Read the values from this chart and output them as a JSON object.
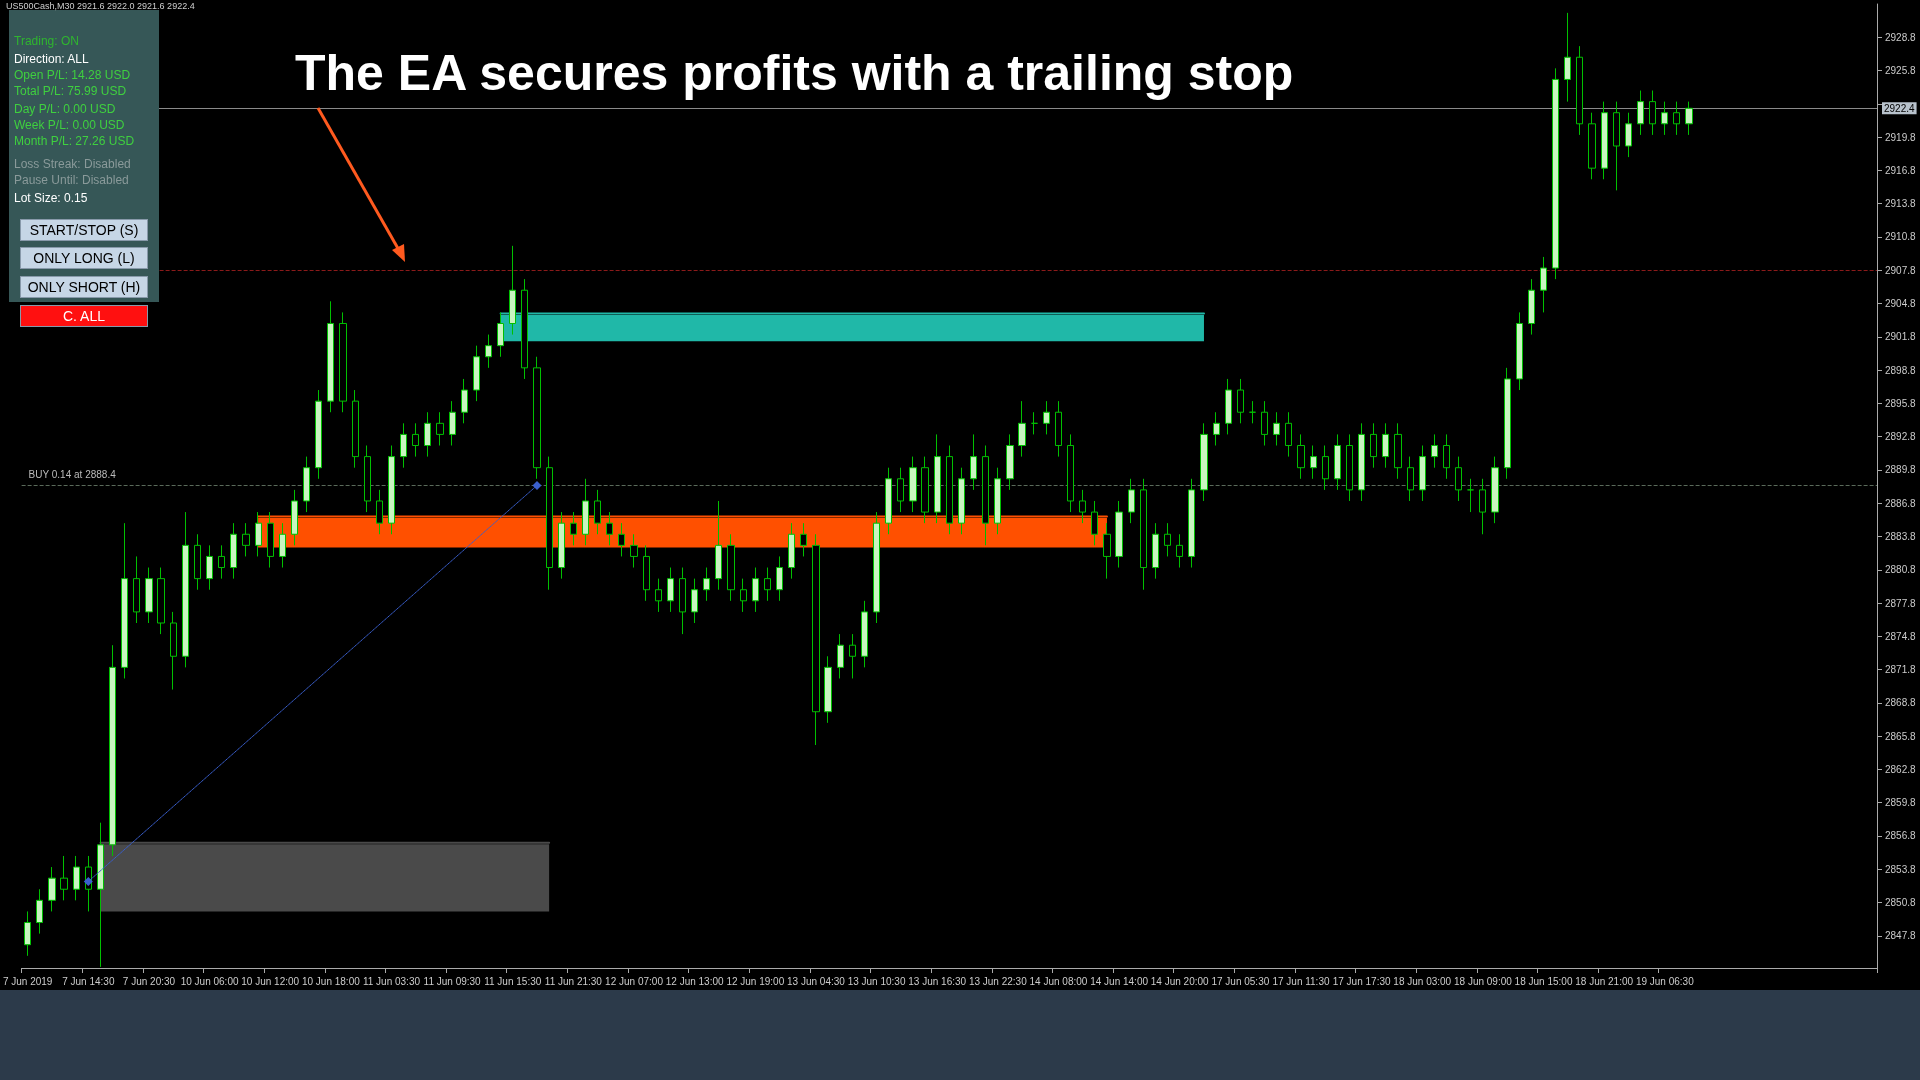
{
  "chart_data": {
    "type": "candlestick",
    "title": "The EA secures profits with a trailing stop",
    "categories": [
      "7 Jun 2019",
      null,
      null,
      null,
      null,
      "7 Jun 14:30",
      null,
      null,
      null,
      null,
      "7 Jun 20:30",
      null,
      null,
      null,
      null,
      "10 Jun 06:00",
      null,
      null,
      null,
      null,
      "10 Jun 12:00",
      null,
      null,
      null,
      null,
      "10 Jun 18:00",
      null,
      null,
      null,
      null,
      "11 Jun 03:30",
      null,
      null,
      null,
      null,
      "11 Jun 09:30",
      null,
      null,
      null,
      null,
      "11 Jun 15:30",
      null,
      null,
      null,
      null,
      "11 Jun 21:30",
      null,
      null,
      null,
      null,
      "12 Jun 07:00",
      null,
      null,
      null,
      null,
      "12 Jun 13:00",
      null,
      null,
      null,
      null,
      "12 Jun 19:00",
      null,
      null,
      null,
      null,
      "13 Jun 04:30",
      null,
      null,
      null,
      null,
      "13 Jun 10:30",
      null,
      null,
      null,
      null,
      "13 Jun 16:30",
      null,
      null,
      null,
      null,
      "13 Jun 22:30",
      null,
      null,
      null,
      null,
      "14 Jun 08:00",
      null,
      null,
      null,
      null,
      "14 Jun 14:00",
      null,
      null,
      null,
      null,
      "14 Jun 20:00",
      null,
      null,
      null,
      null,
      "17 Jun 05:30",
      null,
      null,
      null,
      null,
      "17 Jun 11:30",
      null,
      null,
      null,
      null,
      "17 Jun 17:30",
      null,
      null,
      null,
      null,
      "18 Jun 03:00",
      null,
      null,
      null,
      null,
      "18 Jun 09:00",
      null,
      null,
      null,
      null,
      "18 Jun 15:00",
      null,
      null,
      null,
      null,
      "18 Jun 21:00",
      null,
      null,
      null,
      null,
      "19 Jun 06:30",
      null,
      null,
      null,
      null,
      null,
      null,
      null,
      null,
      null,
      null,
      null,
      null,
      null,
      null,
      null,
      null,
      null
    ],
    "color": "#00c000",
    "ohlc": [
      [
        2847,
        2850,
        2846,
        2849
      ],
      [
        2849,
        2852,
        2848,
        2851
      ],
      [
        2851,
        2854,
        2850,
        2853
      ],
      [
        2853,
        2855,
        2851,
        2852
      ],
      [
        2852,
        2855,
        2851,
        2854
      ],
      [
        2854,
        2855,
        2850,
        2852
      ],
      [
        2852,
        2858,
        2845,
        2856
      ],
      [
        2856,
        2874,
        2855,
        2872
      ],
      [
        2872,
        2885,
        2871,
        2880
      ],
      [
        2880,
        2882,
        2876,
        2877
      ],
      [
        2877,
        2881,
        2876,
        2880
      ],
      [
        2880,
        2881,
        2875,
        2876
      ],
      [
        2876,
        2877,
        2870,
        2873
      ],
      [
        2873,
        2886,
        2872,
        2883
      ],
      [
        2883,
        2884,
        2879,
        2880
      ],
      [
        2880,
        2883,
        2879,
        2882
      ],
      [
        2882,
        2883,
        2880,
        2881
      ],
      [
        2881,
        2885,
        2880,
        2884
      ],
      [
        2884,
        2885,
        2882,
        2883
      ],
      [
        2883,
        2886,
        2882,
        2885
      ],
      [
        2885,
        2886,
        2881,
        2882
      ],
      [
        2882,
        2885,
        2881,
        2884
      ],
      [
        2884,
        2888,
        2883,
        2887
      ],
      [
        2887,
        2891,
        2886,
        2890
      ],
      [
        2890,
        2897,
        2889,
        2896
      ],
      [
        2896,
        2905,
        2895,
        2903
      ],
      [
        2903,
        2904,
        2895,
        2896
      ],
      [
        2896,
        2897,
        2890,
        2891
      ],
      [
        2891,
        2892,
        2886,
        2887
      ],
      [
        2887,
        2888,
        2884,
        2885
      ],
      [
        2885,
        2892,
        2884,
        2891
      ],
      [
        2891,
        2894,
        2890,
        2893
      ],
      [
        2893,
        2894,
        2891,
        2892
      ],
      [
        2892,
        2895,
        2891,
        2894
      ],
      [
        2894,
        2895,
        2892,
        2893
      ],
      [
        2893,
        2896,
        2892,
        2895
      ],
      [
        2895,
        2898,
        2894,
        2897
      ],
      [
        2897,
        2901,
        2896,
        2900
      ],
      [
        2900,
        2902,
        2899,
        2901
      ],
      [
        2901,
        2904,
        2900,
        2903
      ],
      [
        2903,
        2910,
        2902,
        2906
      ],
      [
        2906,
        2907,
        2898,
        2899
      ],
      [
        2899,
        2900,
        2889,
        2890
      ],
      [
        2890,
        2891,
        2879,
        2881
      ],
      [
        2881,
        2886,
        2880,
        2885
      ],
      [
        2885,
        2886,
        2883,
        2884
      ],
      [
        2884,
        2889,
        2883,
        2887
      ],
      [
        2887,
        2888,
        2884,
        2885
      ],
      [
        2885,
        2886,
        2883,
        2884
      ],
      [
        2884,
        2885,
        2882,
        2883
      ],
      [
        2883,
        2884,
        2881,
        2882
      ],
      [
        2882,
        2883,
        2878,
        2879
      ],
      [
        2879,
        2880,
        2877,
        2878
      ],
      [
        2878,
        2881,
        2877,
        2880
      ],
      [
        2880,
        2881,
        2875,
        2877
      ],
      [
        2877,
        2880,
        2876,
        2879
      ],
      [
        2879,
        2881,
        2878,
        2880
      ],
      [
        2880,
        2887,
        2879,
        2883
      ],
      [
        2883,
        2884,
        2878,
        2879
      ],
      [
        2879,
        2880,
        2877,
        2878
      ],
      [
        2878,
        2881,
        2877,
        2880
      ],
      [
        2880,
        2881,
        2878,
        2879
      ],
      [
        2879,
        2882,
        2878,
        2881
      ],
      [
        2881,
        2885,
        2880,
        2884
      ],
      [
        2884,
        2885,
        2882,
        2883
      ],
      [
        2883,
        2884,
        2865,
        2868
      ],
      [
        2868,
        2873,
        2867,
        2872
      ],
      [
        2872,
        2875,
        2871,
        2874
      ],
      [
        2874,
        2875,
        2871,
        2873
      ],
      [
        2873,
        2878,
        2872,
        2877
      ],
      [
        2877,
        2886,
        2876,
        2885
      ],
      [
        2885,
        2890,
        2884,
        2889
      ],
      [
        2889,
        2890,
        2886,
        2887
      ],
      [
        2887,
        2891,
        2886,
        2890
      ],
      [
        2890,
        2891,
        2885,
        2886
      ],
      [
        2886,
        2893,
        2885,
        2891
      ],
      [
        2891,
        2892,
        2884,
        2885
      ],
      [
        2885,
        2890,
        2884,
        2889
      ],
      [
        2889,
        2893,
        2888,
        2891
      ],
      [
        2891,
        2892,
        2883,
        2885
      ],
      [
        2885,
        2890,
        2884,
        2889
      ],
      [
        2889,
        2893,
        2888,
        2892
      ],
      [
        2892,
        2896,
        2891,
        2894
      ],
      [
        2894,
        2895,
        2893,
        2894
      ],
      [
        2894,
        2896,
        2893,
        2895
      ],
      [
        2895,
        2896,
        2891,
        2892
      ],
      [
        2892,
        2893,
        2886,
        2887
      ],
      [
        2887,
        2888,
        2885,
        2886
      ],
      [
        2886,
        2887,
        2883,
        2884
      ],
      [
        2884,
        2885,
        2880,
        2882
      ],
      [
        2882,
        2887,
        2881,
        2886
      ],
      [
        2886,
        2889,
        2885,
        2888
      ],
      [
        2888,
        2889,
        2879,
        2881
      ],
      [
        2881,
        2885,
        2880,
        2884
      ],
      [
        2884,
        2885,
        2882,
        2883
      ],
      [
        2883,
        2884,
        2881,
        2882
      ],
      [
        2882,
        2889,
        2881,
        2888
      ],
      [
        2888,
        2894,
        2887,
        2893
      ],
      [
        2893,
        2895,
        2892,
        2894
      ],
      [
        2894,
        2898,
        2893,
        2897
      ],
      [
        2897,
        2898,
        2894,
        2895
      ],
      [
        2895,
        2896,
        2894,
        2895
      ],
      [
        2895,
        2896,
        2892,
        2893
      ],
      [
        2893,
        2895,
        2892,
        2894
      ],
      [
        2894,
        2895,
        2891,
        2892
      ],
      [
        2892,
        2893,
        2889,
        2890
      ],
      [
        2890,
        2892,
        2889,
        2891
      ],
      [
        2891,
        2892,
        2888,
        2889
      ],
      [
        2889,
        2893,
        2888,
        2892
      ],
      [
        2892,
        2893,
        2887,
        2888
      ],
      [
        2888,
        2894,
        2887,
        2893
      ],
      [
        2893,
        2894,
        2890,
        2891
      ],
      [
        2891,
        2894,
        2890,
        2893
      ],
      [
        2893,
        2894,
        2889,
        2890
      ],
      [
        2890,
        2891,
        2887,
        2888
      ],
      [
        2888,
        2892,
        2887,
        2891
      ],
      [
        2891,
        2893,
        2890,
        2892
      ],
      [
        2892,
        2893,
        2889,
        2890
      ],
      [
        2890,
        2891,
        2887,
        2888
      ],
      [
        2888,
        2889,
        2886,
        2888
      ],
      [
        2888,
        2889,
        2884,
        2886
      ],
      [
        2886,
        2891,
        2885,
        2890
      ],
      [
        2890,
        2899,
        2889,
        2898
      ],
      [
        2898,
        2904,
        2897,
        2903
      ],
      [
        2903,
        2907,
        2902,
        2906
      ],
      [
        2906,
        2909,
        2904,
        2908
      ],
      [
        2908,
        2926,
        2907,
        2925
      ],
      [
        2925,
        2931,
        2923,
        2927
      ],
      [
        2927,
        2928,
        2920,
        2921
      ],
      [
        2921,
        2922,
        2916,
        2917
      ],
      [
        2917,
        2923,
        2916,
        2922
      ],
      [
        2922,
        2923,
        2915,
        2919
      ],
      [
        2919,
        2922,
        2918,
        2921
      ],
      [
        2921,
        2924,
        2920,
        2923
      ],
      [
        2923,
        2924,
        2920,
        2921
      ],
      [
        2921,
        2923,
        2920,
        2922
      ],
      [
        2922,
        2923,
        2920,
        2921
      ],
      [
        2921,
        2923,
        2920,
        2922.4
      ],
      null,
      null,
      null,
      null,
      null,
      null,
      null,
      null,
      null,
      null,
      null,
      null,
      null,
      null,
      null
    ],
    "series": [
      {
        "type": "line",
        "color": "#20b8a8",
        "values": [
          null,
          null,
          null,
          null,
          null,
          null,
          null,
          null,
          null,
          null,
          null,
          null,
          null,
          null,
          null,
          null,
          null,
          null,
          null,
          null,
          null,
          null,
          null,
          null,
          null,
          null,
          null,
          null,
          null,
          null,
          null,
          null,
          null,
          null,
          null,
          null,
          null,
          null,
          null,
          2903.9,
          2903.9,
          2903.9,
          2903.9,
          2903.9,
          2903.9,
          2903.9,
          2903.9,
          2903.9,
          2903.9,
          2903.9,
          2903.9,
          2903.9,
          2903.9,
          2903.9,
          2903.9,
          2903.9,
          2903.9,
          2903.9,
          2903.9,
          2903.9,
          2903.9,
          2903.9,
          2903.9,
          2903.9,
          2903.9,
          2903.9,
          2903.9,
          2903.9,
          2903.9,
          2903.9,
          2903.9,
          2903.9,
          2903.9,
          2903.9,
          2903.9,
          2903.9,
          2903.9,
          2903.9,
          2903.9,
          2903.9,
          2903.9,
          2903.9,
          2903.9,
          2903.9,
          2903.9,
          2903.9,
          2903.9,
          2903.9,
          2903.9,
          2903.9,
          2903.9,
          2903.9,
          2903.9,
          2903.9,
          2903.9,
          2903.9,
          2903.9,
          2903.9,
          null,
          null,
          null,
          null,
          null,
          null,
          null,
          null,
          null,
          null,
          null,
          null,
          null,
          null,
          null,
          null,
          null,
          null,
          null,
          null,
          null,
          null,
          null,
          null,
          null,
          null,
          null,
          null,
          null,
          null,
          null,
          null,
          null,
          null,
          null,
          null,
          null,
          null,
          null,
          null,
          null,
          null,
          null,
          null,
          null,
          null,
          null,
          null,
          null,
          null,
          null,
          null,
          null,
          null,
          null
        ],
        "upper": [
          null,
          null,
          null,
          null,
          null,
          null,
          null,
          null,
          null,
          null,
          null,
          null,
          null,
          null,
          null,
          null,
          null,
          null,
          null,
          null,
          null,
          null,
          null,
          null,
          null,
          null,
          null,
          null,
          null,
          null,
          null,
          null,
          null,
          null,
          null,
          null,
          null,
          null,
          null,
          2903.9,
          2903.9,
          2903.9,
          2903.9,
          2903.9,
          2903.9,
          2903.9,
          2903.9,
          2903.9,
          2903.9,
          2903.9,
          2903.9,
          2903.9,
          2903.9,
          2903.9,
          2903.9,
          2903.9,
          2903.9,
          2903.9,
          2903.9,
          2903.9,
          2903.9,
          2903.9,
          2903.9,
          2903.9,
          2903.9,
          2903.9,
          2903.9,
          2903.9,
          2903.9,
          2903.9,
          2903.9,
          2903.9,
          2903.9,
          2903.9,
          2903.9,
          2903.9,
          2903.9,
          2903.9,
          2903.9,
          2903.9,
          2903.9,
          2903.9,
          2903.9,
          2903.9,
          2903.9,
          2903.9,
          2903.9,
          2903.9,
          2903.9,
          2903.9,
          2903.9,
          2903.9,
          2903.9,
          2903.9,
          2903.9,
          2903.9,
          2903.9,
          2903.9,
          null,
          null,
          null,
          null,
          null,
          null,
          null,
          null,
          null,
          null,
          null,
          null,
          null,
          null,
          null,
          null,
          null,
          null,
          null,
          null,
          null,
          null,
          null,
          null,
          null,
          null,
          null,
          null,
          null,
          null,
          null,
          null,
          null,
          null,
          null,
          null,
          null,
          null,
          null,
          null,
          null,
          null,
          null,
          null,
          null,
          null,
          null,
          null,
          null,
          null,
          null,
          null,
          null,
          null,
          null
        ],
        "lower": [
          null,
          null,
          null,
          null,
          null,
          null,
          null,
          null,
          null,
          null,
          null,
          null,
          null,
          null,
          null,
          null,
          null,
          null,
          null,
          null,
          null,
          null,
          null,
          null,
          null,
          null,
          null,
          null,
          null,
          null,
          null,
          null,
          null,
          null,
          null,
          null,
          null,
          null,
          null,
          2901.4,
          2901.4,
          2901.4,
          2901.4,
          2901.4,
          2901.4,
          2901.4,
          2901.4,
          2901.4,
          2901.4,
          2901.4,
          2901.4,
          2901.4,
          2901.4,
          2901.4,
          2901.4,
          2901.4,
          2901.4,
          2901.4,
          2901.4,
          2901.4,
          2901.4,
          2901.4,
          2901.4,
          2901.4,
          2901.4,
          2901.4,
          2901.4,
          2901.4,
          2901.4,
          2901.4,
          2901.4,
          2901.4,
          2901.4,
          2901.4,
          2901.4,
          2901.4,
          2901.4,
          2901.4,
          2901.4,
          2901.4,
          2901.4,
          2901.4,
          2901.4,
          2901.4,
          2901.4,
          2901.4,
          2901.4,
          2901.4,
          2901.4,
          2901.4,
          2901.4,
          2901.4,
          2901.4,
          2901.4,
          2901.4,
          2901.4,
          2901.4,
          2901.4,
          null,
          null,
          null,
          null,
          null,
          null,
          null,
          null,
          null,
          null,
          null,
          null,
          null,
          null,
          null,
          null,
          null,
          null,
          null,
          null,
          null,
          null,
          null,
          null,
          null,
          null,
          null,
          null,
          null,
          null,
          null,
          null,
          null,
          null,
          null,
          null,
          null,
          null,
          null,
          null,
          null,
          null,
          null,
          null,
          null,
          null,
          null,
          null,
          null,
          null,
          null,
          null,
          null,
          null,
          null
        ]
      },
      {
        "type": "line",
        "color": "#ff5000",
        "values": [
          null,
          null,
          null,
          null,
          null,
          null,
          null,
          null,
          null,
          null,
          null,
          null,
          null,
          null,
          null,
          null,
          null,
          null,
          null,
          2885.6,
          2885.6,
          2885.6,
          2885.6,
          2885.6,
          2885.6,
          2885.6,
          2885.6,
          2885.6,
          2885.6,
          2885.6,
          2885.6,
          2885.6,
          2885.6,
          2885.6,
          2885.6,
          2885.6,
          2885.6,
          2885.6,
          2885.6,
          2885.6,
          2885.6,
          2885.6,
          2885.6,
          2885.6,
          2885.6,
          2885.6,
          2885.6,
          2885.6,
          2885.6,
          2885.6,
          2885.6,
          2885.6,
          2885.6,
          2885.6,
          2885.6,
          2885.6,
          2885.6,
          2885.6,
          2885.6,
          2885.6,
          2885.6,
          2885.6,
          2885.6,
          2885.6,
          2885.6,
          2885.6,
          2885.6,
          2885.6,
          2885.6,
          2885.6,
          2885.6,
          2885.6,
          2885.6,
          2885.6,
          2885.6,
          2885.6,
          2885.6,
          2885.6,
          2885.6,
          2885.6,
          2885.6,
          2885.6,
          2885.6,
          2885.6,
          2885.6,
          2885.6,
          2885.6,
          2885.6,
          2885.6,
          2885.6,
          null,
          null,
          null,
          null,
          null,
          null,
          null,
          null,
          null,
          null,
          null,
          null,
          null,
          null,
          null,
          null,
          null,
          null,
          null,
          null,
          null,
          null,
          null,
          null,
          null,
          null,
          null,
          null,
          null,
          null,
          null,
          null,
          null,
          null,
          null,
          null,
          null,
          null,
          null,
          null,
          null,
          null,
          null,
          null,
          null,
          null,
          null,
          null,
          null,
          null,
          null,
          null,
          null,
          null,
          null,
          null,
          null,
          null,
          null,
          null,
          null,
          null,
          null
        ],
        "upper": [
          null,
          null,
          null,
          null,
          null,
          null,
          null,
          null,
          null,
          null,
          null,
          null,
          null,
          null,
          null,
          null,
          null,
          null,
          null,
          2885.6,
          2885.6,
          2885.6,
          2885.6,
          2885.6,
          2885.6,
          2885.6,
          2885.6,
          2885.6,
          2885.6,
          2885.6,
          2885.6,
          2885.6,
          2885.6,
          2885.6,
          2885.6,
          2885.6,
          2885.6,
          2885.6,
          2885.6,
          2885.6,
          2885.6,
          2885.6,
          2885.6,
          2885.6,
          2885.6,
          2885.6,
          2885.6,
          2885.6,
          2885.6,
          2885.6,
          2885.6,
          2885.6,
          2885.6,
          2885.6,
          2885.6,
          2885.6,
          2885.6,
          2885.6,
          2885.6,
          2885.6,
          2885.6,
          2885.6,
          2885.6,
          2885.6,
          2885.6,
          2885.6,
          2885.6,
          2885.6,
          2885.6,
          2885.6,
          2885.6,
          2885.6,
          2885.6,
          2885.6,
          2885.6,
          2885.6,
          2885.6,
          2885.6,
          2885.6,
          2885.6,
          2885.6,
          2885.6,
          2885.6,
          2885.6,
          2885.6,
          2885.6,
          2885.6,
          2885.6,
          2885.6,
          2885.6,
          null,
          null,
          null,
          null,
          null,
          null,
          null,
          null,
          null,
          null,
          null,
          null,
          null,
          null,
          null,
          null,
          null,
          null,
          null,
          null,
          null,
          null,
          null,
          null,
          null,
          null,
          null,
          null,
          null,
          null,
          null,
          null,
          null,
          null,
          null,
          null,
          null,
          null,
          null,
          null,
          null,
          null,
          null,
          null,
          null,
          null,
          null,
          null,
          null,
          null,
          null,
          null,
          null,
          null,
          null,
          null,
          null,
          null,
          null,
          null,
          null,
          null,
          null
        ],
        "lower": [
          null,
          null,
          null,
          null,
          null,
          null,
          null,
          null,
          null,
          null,
          null,
          null,
          null,
          null,
          null,
          null,
          null,
          null,
          null,
          2882.8,
          2882.8,
          2882.8,
          2882.8,
          2882.8,
          2882.8,
          2882.8,
          2882.8,
          2882.8,
          2882.8,
          2882.8,
          2882.8,
          2882.8,
          2882.8,
          2882.8,
          2882.8,
          2882.8,
          2882.8,
          2882.8,
          2882.8,
          2882.8,
          2882.8,
          2882.8,
          2882.8,
          2882.8,
          2882.8,
          2882.8,
          2882.8,
          2882.8,
          2882.8,
          2882.8,
          2882.8,
          2882.8,
          2882.8,
          2882.8,
          2882.8,
          2882.8,
          2882.8,
          2882.8,
          2882.8,
          2882.8,
          2882.8,
          2882.8,
          2882.8,
          2882.8,
          2882.8,
          2882.8,
          2882.8,
          2882.8,
          2882.8,
          2882.8,
          2882.8,
          2882.8,
          2882.8,
          2882.8,
          2882.8,
          2882.8,
          2882.8,
          2882.8,
          2882.8,
          2882.8,
          2882.8,
          2882.8,
          2882.8,
          2882.8,
          2882.8,
          2882.8,
          2882.8,
          2882.8,
          2882.8,
          2882.8,
          null,
          null,
          null,
          null,
          null,
          null,
          null,
          null,
          null,
          null,
          null,
          null,
          null,
          null,
          null,
          null,
          null,
          null,
          null,
          null,
          null,
          null,
          null,
          null,
          null,
          null,
          null,
          null,
          null,
          null,
          null,
          null,
          null,
          null,
          null,
          null,
          null,
          null,
          null,
          null,
          null,
          null,
          null,
          null,
          null,
          null,
          null,
          null,
          null,
          null,
          null,
          null,
          null,
          null,
          null,
          null,
          null,
          null,
          null,
          null,
          null,
          null,
          null
        ]
      },
      {
        "type": "line",
        "color": "#4a4a4a",
        "values": [
          null,
          null,
          null,
          null,
          null,
          null,
          2856.2,
          2856.2,
          2856.2,
          2856.2,
          2856.2,
          2856.2,
          2856.2,
          2856.2,
          2856.2,
          2856.2,
          2856.2,
          2856.2,
          2856.2,
          2856.2,
          2856.2,
          2856.2,
          2856.2,
          2856.2,
          2856.2,
          2856.2,
          2856.2,
          2856.2,
          2856.2,
          2856.2,
          2856.2,
          2856.2,
          2856.2,
          2856.2,
          2856.2,
          2856.2,
          2856.2,
          2856.2,
          2856.2,
          2856.2,
          2856.2,
          2856.2,
          2856.2,
          2856.2,
          null,
          null,
          null,
          null,
          null,
          null,
          null,
          null,
          null,
          null,
          null,
          null,
          null,
          null,
          null,
          null,
          null,
          null,
          null,
          null,
          null,
          null,
          null,
          null,
          null,
          null,
          null,
          null,
          null,
          null,
          null,
          null,
          null,
          null,
          null,
          null,
          null,
          null,
          null,
          null,
          null,
          null,
          null,
          null,
          null,
          null,
          null,
          null,
          null,
          null,
          null,
          null,
          null,
          null,
          null,
          null,
          null,
          null,
          null,
          null,
          null,
          null,
          null,
          null,
          null,
          null,
          null,
          null,
          null,
          null,
          null,
          null,
          null,
          null,
          null,
          null,
          null,
          null,
          null,
          null,
          null,
          null,
          null,
          null,
          null,
          null,
          null,
          null,
          null,
          null,
          null,
          null,
          null,
          null,
          null,
          null,
          null,
          null,
          null,
          null,
          null,
          null,
          null,
          null,
          null,
          null,
          null,
          null,
          null
        ],
        "upper": [
          null,
          null,
          null,
          null,
          null,
          null,
          2856.2,
          2856.2,
          2856.2,
          2856.2,
          2856.2,
          2856.2,
          2856.2,
          2856.2,
          2856.2,
          2856.2,
          2856.2,
          2856.2,
          2856.2,
          2856.2,
          2856.2,
          2856.2,
          2856.2,
          2856.2,
          2856.2,
          2856.2,
          2856.2,
          2856.2,
          2856.2,
          2856.2,
          2856.2,
          2856.2,
          2856.2,
          2856.2,
          2856.2,
          2856.2,
          2856.2,
          2856.2,
          2856.2,
          2856.2,
          2856.2,
          2856.2,
          2856.2,
          2856.2,
          null,
          null,
          null,
          null,
          null,
          null,
          null,
          null,
          null,
          null,
          null,
          null,
          null,
          null,
          null,
          null,
          null,
          null,
          null,
          null,
          null,
          null,
          null,
          null,
          null,
          null,
          null,
          null,
          null,
          null,
          null,
          null,
          null,
          null,
          null,
          null,
          null,
          null,
          null,
          null,
          null,
          null,
          null,
          null,
          null,
          null,
          null,
          null,
          null,
          null,
          null,
          null,
          null,
          null,
          null,
          null,
          null,
          null,
          null,
          null,
          null,
          null,
          null,
          null,
          null,
          null,
          null,
          null,
          null,
          null,
          null,
          null,
          null,
          null,
          null,
          null,
          null,
          null,
          null,
          null,
          null,
          null,
          null,
          null,
          null,
          null,
          null,
          null,
          null,
          null,
          null,
          null,
          null,
          null,
          null,
          null,
          null,
          null,
          null,
          null,
          null,
          null,
          null,
          null,
          null,
          null,
          null,
          null,
          null
        ],
        "lower": [
          null,
          null,
          null,
          null,
          null,
          null,
          2850.0,
          2850.0,
          2850.0,
          2850.0,
          2850.0,
          2850.0,
          2850.0,
          2850.0,
          2850.0,
          2850.0,
          2850.0,
          2850.0,
          2850.0,
          2850.0,
          2850.0,
          2850.0,
          2850.0,
          2850.0,
          2850.0,
          2850.0,
          2850.0,
          2850.0,
          2850.0,
          2850.0,
          2850.0,
          2850.0,
          2850.0,
          2850.0,
          2850.0,
          2850.0,
          2850.0,
          2850.0,
          2850.0,
          2850.0,
          2850.0,
          2850.0,
          2850.0,
          2850.0,
          null,
          null,
          null,
          null,
          null,
          null,
          null,
          null,
          null,
          null,
          null,
          null,
          null,
          null,
          null,
          null,
          null,
          null,
          null,
          null,
          null,
          null,
          null,
          null,
          null,
          null,
          null,
          null,
          null,
          null,
          null,
          null,
          null,
          null,
          null,
          null,
          null,
          null,
          null,
          null,
          null,
          null,
          null,
          null,
          null,
          null,
          null,
          null,
          null,
          null,
          null,
          null,
          null,
          null,
          null,
          null,
          null,
          null,
          null,
          null,
          null,
          null,
          null,
          null,
          null,
          null,
          null,
          null,
          null,
          null,
          null,
          null,
          null,
          null,
          null,
          null,
          null,
          null,
          null,
          null,
          null,
          null,
          null,
          null,
          null,
          null,
          null,
          null,
          null,
          null,
          null,
          null,
          null,
          null,
          null,
          null,
          null,
          null,
          null,
          null,
          null,
          null,
          null,
          null,
          null,
          null,
          null,
          null,
          null
        ]
      },
      {
        "type": "line",
        "color": "#3a5fcd",
        "marker": "diamond",
        "line_style": "dotted",
        "values": [
          null,
          null,
          null,
          null,
          null,
          2852.7,
          null,
          null,
          null,
          null,
          null,
          null,
          null,
          null,
          null,
          null,
          null,
          null,
          null,
          null,
          null,
          null,
          null,
          null,
          null,
          null,
          null,
          null,
          null,
          null,
          null,
          null,
          null,
          null,
          null,
          null,
          null,
          null,
          null,
          null,
          null,
          null,
          2888.4,
          null,
          null,
          null,
          null,
          null,
          null,
          null,
          null,
          null,
          null,
          null,
          null,
          null,
          null,
          null,
          null,
          null,
          null,
          null,
          null,
          null,
          null,
          null,
          null,
          null,
          null,
          null,
          null,
          null,
          null,
          null,
          null,
          null,
          null,
          null,
          null,
          null,
          null,
          null,
          null,
          null,
          null,
          null,
          null,
          null,
          null,
          null,
          null,
          null,
          null,
          null,
          null,
          null,
          null,
          null,
          null,
          null,
          null,
          null,
          null,
          null,
          null,
          null,
          null,
          null,
          null,
          null,
          null,
          null,
          null,
          null,
          null,
          null,
          null,
          null,
          null,
          null,
          null,
          null,
          null,
          null,
          null,
          null,
          null,
          null,
          null,
          null,
          null,
          null,
          null,
          null,
          null,
          null,
          null,
          null,
          null,
          null,
          null,
          null,
          null,
          null,
          null,
          null,
          null,
          null,
          null,
          null,
          null,
          null,
          null
        ]
      }
    ],
    "ylim": [
      2844.9,
      2931.8
    ],
    "yticks": [
      2847.8,
      2850.8,
      2853.8,
      2856.8,
      2859.8,
      2862.8,
      2865.8,
      2868.8,
      2871.8,
      2874.8,
      2877.8,
      2880.8,
      2883.8,
      2886.8,
      2889.8,
      2892.8,
      2895.8,
      2898.8,
      2901.8,
      2904.8,
      2907.8,
      2910.8,
      2913.8,
      2916.8,
      2919.8,
      {
        "value": 2922.8,
        "label": null
      },
      2925.8,
      2928.8
    ],
    "ref_lines": [
      {
        "axis": "y",
        "value": 2922.4,
        "label": "2922.4",
        "color": "#8a8a8a",
        "line_style": "solid"
      },
      {
        "axis": "y",
        "value": 2907.8,
        "color": "#8b1a1a",
        "line_style": "dashed"
      },
      {
        "axis": "y",
        "value": 2888.4,
        "label": "BUY 0.14 at 2888.4",
        "color": "#5a6a5a",
        "line_style": "dashed"
      }
    ],
    "annotations": [
      "US500Cash,M30 2921.6 2922.0 2921.6 2922.4",
      "Trading: ON",
      "Direction: ALL",
      "Open P/L: 14.28 USD",
      "Total P/L: 75.99 USD",
      "Day P/L: 0.00 USD",
      "Week P/L: 0.00 USD",
      "Month P/L: 27.26 USD",
      "Loss Streak: Disabled",
      "Pause Until: Disabled",
      "Lot Size: 0.15",
      "START/STOP (S)",
      "ONLY LONG (L)",
      "ONLY SHORT (H)",
      "C. ALL"
    ]
  }
}
